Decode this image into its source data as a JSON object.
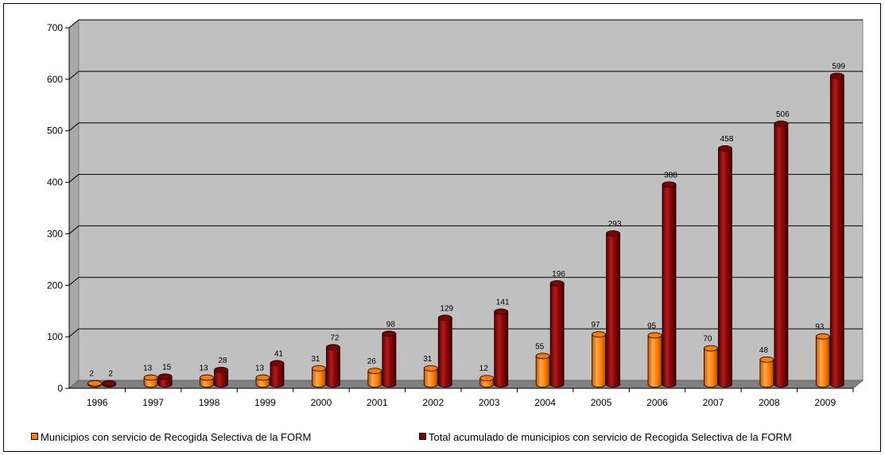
{
  "chart_data": {
    "type": "bar",
    "categories": [
      "1996",
      "1997",
      "1998",
      "1999",
      "2000",
      "2001",
      "2002",
      "2003",
      "2004",
      "2005",
      "2006",
      "2007",
      "2008",
      "2009"
    ],
    "series": [
      {
        "name": "Municipios con servicio de Recogida Selectiva de la FORM",
        "color": "#ff7a00",
        "values": [
          2,
          13,
          13,
          13,
          31,
          26,
          31,
          12,
          55,
          97,
          95,
          70,
          48,
          93
        ]
      },
      {
        "name": "Total acumulado de municipios con servicio de Recogida Selectiva de la FORM",
        "color": "#800000",
        "values": [
          2,
          15,
          28,
          41,
          72,
          98,
          129,
          141,
          196,
          293,
          388,
          458,
          506,
          599
        ]
      }
    ],
    "yticks": [
      "0",
      "100",
      "200",
      "300",
      "400",
      "500",
      "600",
      "700"
    ],
    "ylim": [
      0,
      700
    ],
    "grid": true,
    "legend_position": "bottom"
  }
}
